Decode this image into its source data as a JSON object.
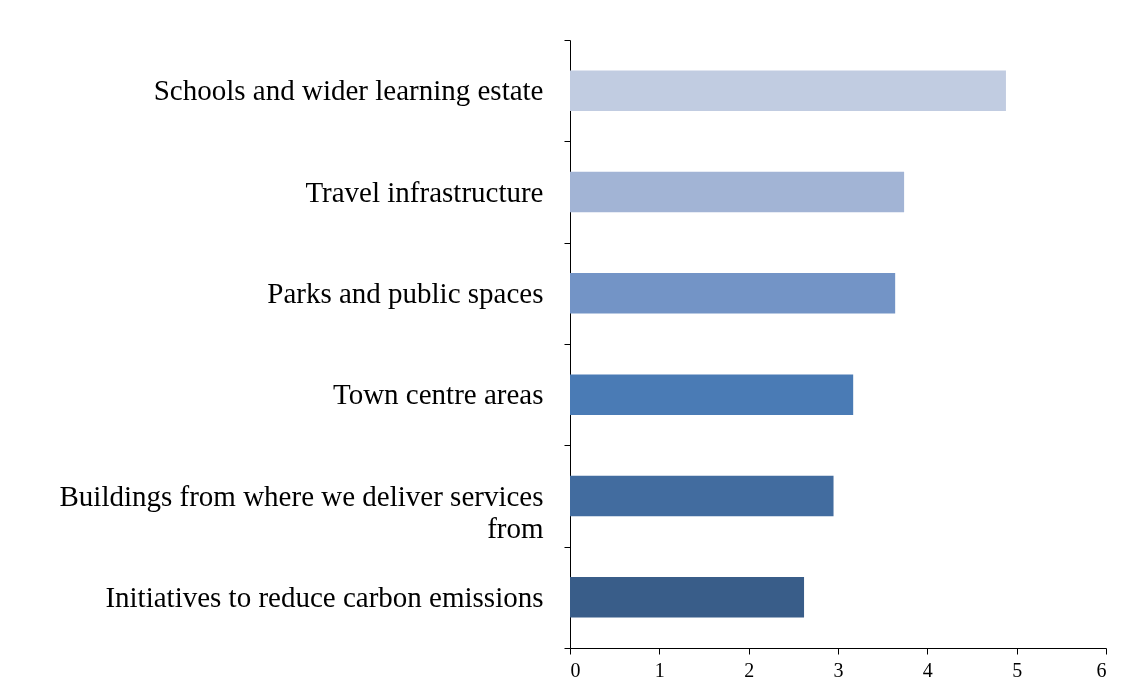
{
  "chart_data": {
    "type": "bar",
    "orientation": "horizontal",
    "categories": [
      "Schools and wider learning estate",
      "Travel infrastructure",
      "Parks and public spaces",
      "Town centre areas",
      "Buildings from where we deliver services from",
      "Initiatives to reduce carbon emissions"
    ],
    "values": [
      4.88,
      3.74,
      3.64,
      3.17,
      2.95,
      2.62
    ],
    "colors": [
      "#c1cce1",
      "#a2b4d5",
      "#7394c6",
      "#4a7bb5",
      "#426c9f",
      "#395d89"
    ],
    "xlim": [
      0,
      6
    ],
    "xticks": [
      0,
      1,
      2,
      3,
      4,
      5,
      6
    ]
  }
}
